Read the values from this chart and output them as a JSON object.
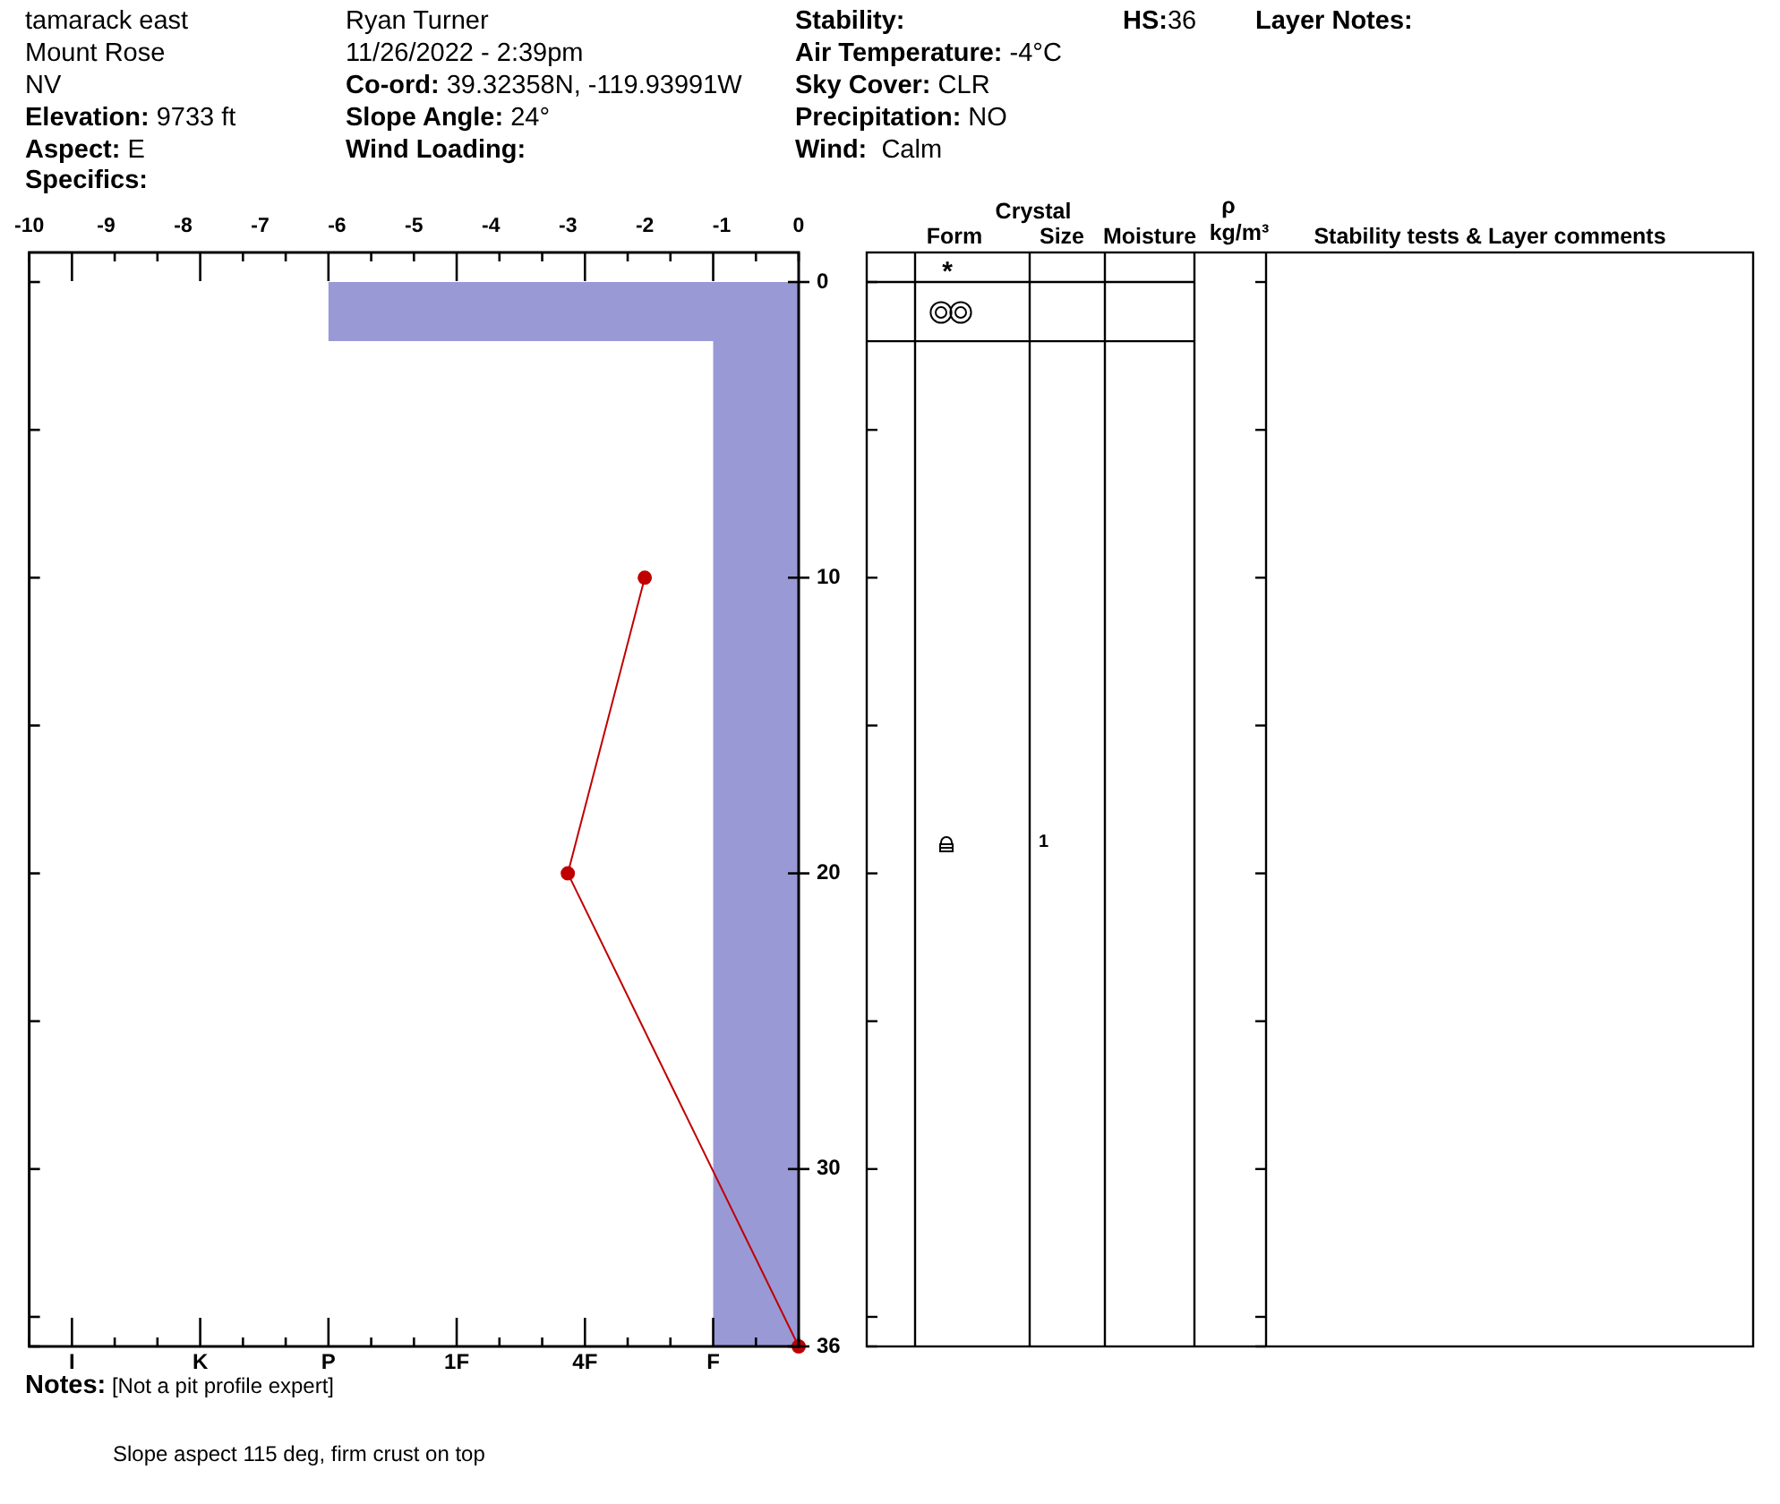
{
  "chart_data": {
    "type": "area",
    "stacked": true,
    "title": "tamarack east",
    "categories": [
      null,
      "I",
      null,
      null,
      "K",
      null,
      null,
      "P",
      null,
      null,
      "1F",
      null,
      null,
      "4F",
      null,
      null,
      "F",
      null,
      null
    ],
    "series": [
      {
        "values": [
          null,
          null,
          null,
          null,
          null,
          null,
          null,
          2,
          2,
          2,
          2,
          2,
          2,
          2,
          2,
          2,
          2,
          2,
          2
        ],
        "color": "#9999d6"
      },
      {
        "values": [
          null,
          null,
          null,
          null,
          null,
          null,
          null,
          null,
          null,
          null,
          null,
          null,
          null,
          null,
          null,
          null,
          34,
          34,
          34
        ],
        "color": "#9999d6"
      },
      {
        "type": "line",
        "axis": "x2",
        "x": [
          -2,
          -3,
          0
        ],
        "values": [
          10,
          20,
          36
        ],
        "color": "#c00000",
        "marker": "circle"
      }
    ],
    "x2lim": [
      -10,
      0
    ],
    "x2ticks": [
      -10,
      -9,
      -8,
      -7,
      -6,
      -5,
      -4,
      -3,
      -2,
      -1,
      0
    ],
    "ylim": [
      36,
      -1
    ],
    "yticks": [
      0,
      {
        "value": 5,
        "label": null
      },
      10,
      {
        "value": 15,
        "label": null
      },
      20,
      {
        "value": 25,
        "label": null
      },
      30,
      {
        "value": 35,
        "label": null
      },
      36
    ],
    "annotations": [
      "Mount Rose",
      "NV",
      "Elevation: 9733 ft",
      "Aspect: E",
      "Specifics:",
      "Ryan Turner",
      "11/26/2022 - 2:39pm",
      "Co-ord: 39.32358N, -119.93991W",
      "Slope Angle: 24°",
      "Wind Loading:",
      "Stability:",
      "Air Temperature: -4°C",
      "Sky Cover: CLR",
      "Precipitation: NO",
      "Wind:  Calm",
      "HS:36",
      "Layer Notes:",
      "Crystal",
      "Form",
      "Size",
      "Moisture",
      "ρ",
      "kg/m³",
      "Stability tests & Layer comments",
      "*",
      "1",
      "Notes: [Not a pit profile expert]",
      "Slope aspect 115 deg, firm crust on top"
    ]
  }
}
